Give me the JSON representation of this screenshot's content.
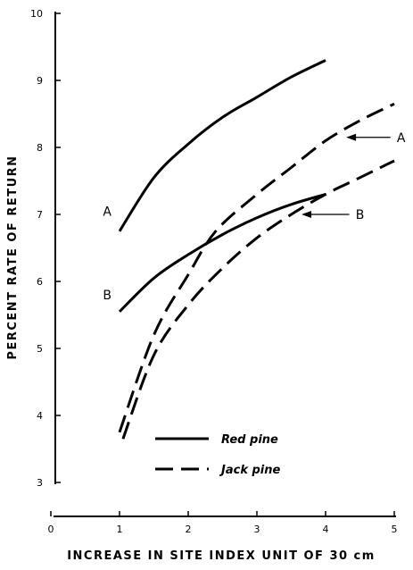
{
  "chart_data": {
    "type": "line",
    "title": "",
    "xlabel": "INCREASE IN SITE INDEX UNIT OF 30 cm",
    "ylabel": "PERCENT RATE OF RETURN",
    "xlim": [
      0,
      5
    ],
    "ylim": [
      3,
      10
    ],
    "x_ticks": [
      "0",
      "1",
      "2",
      "3",
      "4",
      "5"
    ],
    "y_ticks": [
      "3",
      "4",
      "5",
      "6",
      "7",
      "8",
      "9",
      "10"
    ],
    "grid": false,
    "legend_position": "bottom-right",
    "series": [
      {
        "name": "Red pine",
        "curve_label": "A",
        "style": "solid",
        "x": [
          1.0,
          1.5,
          2.0,
          2.5,
          3.0,
          3.5,
          4.0
        ],
        "y": [
          6.75,
          7.55,
          8.05,
          8.45,
          8.75,
          9.05,
          9.3
        ]
      },
      {
        "name": "Red pine",
        "curve_label": "B",
        "style": "solid",
        "x": [
          1.0,
          1.5,
          2.0,
          2.5,
          3.0,
          3.5,
          4.0
        ],
        "y": [
          5.55,
          6.05,
          6.4,
          6.7,
          6.95,
          7.15,
          7.3
        ]
      },
      {
        "name": "Jack pine",
        "curve_label": "A",
        "style": "dashed",
        "x": [
          1.0,
          1.5,
          2.0,
          2.4,
          3.0,
          3.5,
          4.0,
          4.5,
          5.0
        ],
        "y": [
          3.75,
          5.2,
          6.1,
          6.75,
          7.3,
          7.7,
          8.1,
          8.4,
          8.65
        ]
      },
      {
        "name": "Jack pine",
        "curve_label": "B",
        "style": "dashed",
        "x": [
          1.05,
          1.5,
          2.0,
          2.5,
          3.0,
          3.5,
          4.0,
          4.5,
          5.0
        ],
        "y": [
          3.65,
          4.9,
          5.65,
          6.2,
          6.65,
          7.0,
          7.3,
          7.55,
          7.8
        ]
      }
    ],
    "annotations": [
      {
        "text": "A",
        "x": 0.82,
        "y": 7.05
      },
      {
        "text": "B",
        "x": 0.82,
        "y": 5.8
      },
      {
        "text": "A",
        "x": 5.1,
        "y": 8.15,
        "arrow_to": [
          4.3,
          8.15
        ]
      },
      {
        "text": "B",
        "x": 4.5,
        "y": 7.0,
        "arrow_to": [
          3.65,
          7.0
        ]
      }
    ],
    "legend": [
      {
        "label": "Red pine",
        "style": "solid"
      },
      {
        "label": "Jack pine",
        "style": "dashed"
      }
    ]
  }
}
